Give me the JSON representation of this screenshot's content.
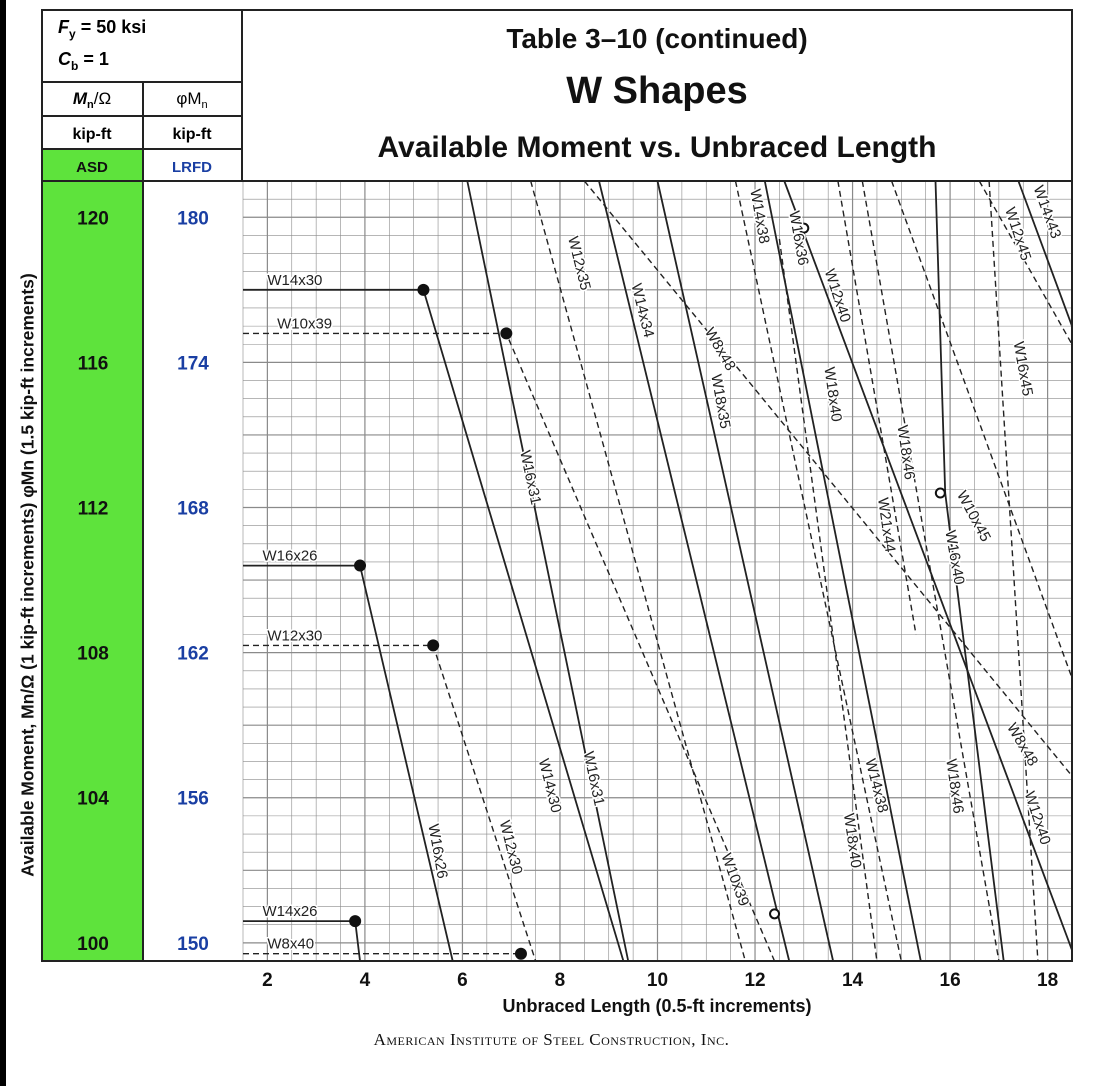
{
  "header": {
    "fy_label": "F",
    "fy_sub": "y",
    "fy_value": " = 50 ksi",
    "cb_label": "C",
    "cb_sub": "b",
    "cb_value": " = 1",
    "asd_heading": "M",
    "asd_heading_sub": "n",
    "asd_heading_rest": "/Ω",
    "lrfd_heading": "φM",
    "lrfd_heading_sub": "n",
    "asd_units": "kip-ft",
    "lrfd_units": "kip-ft",
    "asd_label": "ASD",
    "lrfd_label": "LRFD",
    "title_line1": "Table 3–10 (continued)",
    "title_line2": "W Shapes",
    "title_line3": "Available Moment vs. Unbraced Length"
  },
  "y_axis_title": "Available Moment, Mn/Ω (1 kip-ft increments) φMn (1.5 kip-ft increments)",
  "x_axis_title": "Unbraced Length (0.5-ft increments)",
  "footer": "American Institute of Steel Construction, Inc.",
  "colors": {
    "asd_green": "#5ee33c",
    "lrfd_blue": "#1a3fa3",
    "line": "#222222",
    "grid": "#8a8a8a"
  },
  "chart_data": {
    "type": "line",
    "xlabel": "Unbraced Length (0.5-ft increments)",
    "ylabel": "Available Moment, Mn/Ω (1 kip-ft increments) φMn (1.5 kip-ft increments)",
    "xlim": [
      1.5,
      18.5
    ],
    "ylim": [
      99.5,
      121
    ],
    "x_ticks": [
      2,
      4,
      6,
      8,
      10,
      12,
      14,
      16,
      18
    ],
    "y_ticks_asd": [
      100,
      104,
      108,
      112,
      116,
      120
    ],
    "y_ticks_lrfd": [
      150,
      156,
      162,
      168,
      174,
      180
    ],
    "grid": true,
    "series": [
      {
        "name": "W14x30",
        "style": "solid",
        "points": [
          [
            1.5,
            118.0
          ],
          [
            5.2,
            118.0
          ],
          [
            9.3,
            99.5
          ]
        ],
        "markers": [
          {
            "x": 5.2,
            "y": 118.0,
            "fill": "solid"
          }
        ],
        "labels": [
          {
            "text": "W14x30",
            "x": 2.0,
            "y": 118.0,
            "angle": 0,
            "pos": "above"
          },
          {
            "text": "W14x30",
            "x": 7.7,
            "y": 104.3,
            "angle": 76
          }
        ]
      },
      {
        "name": "W10x39",
        "style": "dashed",
        "points": [
          [
            1.5,
            116.8
          ],
          [
            6.9,
            116.8
          ],
          [
            12.4,
            99.5
          ]
        ],
        "markers": [
          {
            "x": 6.9,
            "y": 116.8,
            "fill": "solid"
          }
        ],
        "labels": [
          {
            "text": "W10x39",
            "x": 2.2,
            "y": 116.8,
            "angle": 0,
            "pos": "above"
          },
          {
            "text": "W10x39",
            "x": 11.5,
            "y": 101.7,
            "angle": 70
          }
        ]
      },
      {
        "name": "W16x26",
        "style": "solid",
        "points": [
          [
            1.5,
            110.4
          ],
          [
            3.9,
            110.4
          ],
          [
            5.8,
            99.5
          ]
        ],
        "markers": [
          {
            "x": 3.9,
            "y": 110.4,
            "fill": "solid"
          }
        ],
        "labels": [
          {
            "text": "W16x26",
            "x": 1.9,
            "y": 110.4,
            "angle": 0,
            "pos": "above"
          },
          {
            "text": "W16x26",
            "x": 5.4,
            "y": 102.5,
            "angle": 80
          }
        ]
      },
      {
        "name": "W12x30",
        "style": "dashed",
        "points": [
          [
            1.5,
            108.2
          ],
          [
            5.4,
            108.2
          ],
          [
            7.5,
            99.5
          ]
        ],
        "markers": [
          {
            "x": 5.4,
            "y": 108.2,
            "fill": "solid"
          }
        ],
        "labels": [
          {
            "text": "W12x30",
            "x": 2.0,
            "y": 108.2,
            "angle": 0,
            "pos": "above"
          },
          {
            "text": "W12x30",
            "x": 6.9,
            "y": 102.6,
            "angle": 76
          }
        ]
      },
      {
        "name": "W14x26",
        "style": "solid",
        "points": [
          [
            1.5,
            100.6
          ],
          [
            3.8,
            100.6
          ],
          [
            3.9,
            99.5
          ]
        ],
        "markers": [
          {
            "x": 3.8,
            "y": 100.6,
            "fill": "solid"
          }
        ],
        "labels": [
          {
            "text": "W14x26",
            "x": 1.9,
            "y": 100.6,
            "angle": 0,
            "pos": "above"
          }
        ]
      },
      {
        "name": "W8x40",
        "style": "dashed",
        "points": [
          [
            1.5,
            99.7
          ],
          [
            7.2,
            99.7
          ]
        ],
        "markers": [
          {
            "x": 7.2,
            "y": 99.7,
            "fill": "solid"
          }
        ],
        "labels": [
          {
            "text": "W8x40",
            "x": 2.0,
            "y": 99.7,
            "angle": 0,
            "pos": "above"
          }
        ]
      },
      {
        "name": "W16x31",
        "style": "solid",
        "points": [
          [
            6.1,
            121
          ],
          [
            9.4,
            99.5
          ]
        ],
        "markers": [],
        "labels": [
          {
            "text": "W16x31",
            "x": 7.3,
            "y": 112.8,
            "angle": 78
          },
          {
            "text": "W16x31",
            "x": 8.6,
            "y": 104.5,
            "angle": 78
          }
        ]
      },
      {
        "name": "W12x35",
        "style": "dashed",
        "points": [
          [
            7.4,
            121
          ],
          [
            11.8,
            99.5
          ]
        ],
        "markers": [],
        "labels": [
          {
            "text": "W12x35",
            "x": 8.3,
            "y": 118.7,
            "angle": 76
          }
        ]
      },
      {
        "name": "W14x34",
        "style": "solid",
        "points": [
          [
            8.8,
            121
          ],
          [
            12.7,
            99.5
          ]
        ],
        "markers": [],
        "labels": [
          {
            "text": "W14x34",
            "x": 9.6,
            "y": 117.4,
            "angle": 76
          }
        ]
      },
      {
        "name": "W8x48",
        "style": "dashed",
        "points": [
          [
            8.5,
            121
          ],
          [
            18.5,
            104.6
          ]
        ],
        "markers": [],
        "labels": [
          {
            "text": "W8x48",
            "x": 11.2,
            "y": 116.3,
            "angle": 60
          },
          {
            "text": "W8x48",
            "x": 17.4,
            "y": 105.4,
            "angle": 60
          }
        ]
      },
      {
        "name": "W18x35",
        "style": "solid",
        "points": [
          [
            10.0,
            121
          ],
          [
            13.6,
            99.5
          ]
        ],
        "markers": [],
        "labels": [
          {
            "text": "W18x35",
            "x": 11.2,
            "y": 114.9,
            "angle": 80
          }
        ]
      },
      {
        "name": "W14x38",
        "style": "dashed",
        "points": [
          [
            11.6,
            121
          ],
          [
            15.0,
            99.5
          ]
        ],
        "markers": [],
        "labels": [
          {
            "text": "W14x38",
            "x": 12.0,
            "y": 120.0,
            "angle": 80
          },
          {
            "text": "W14x38",
            "x": 14.4,
            "y": 104.3,
            "angle": 76
          }
        ]
      },
      {
        "name": "W16x36",
        "style": "solid",
        "points": [
          [
            12.2,
            121
          ],
          [
            15.4,
            99.5
          ]
        ],
        "markers": [],
        "labels": [
          {
            "text": "W16x36",
            "x": 12.8,
            "y": 119.4,
            "angle": 80
          }
        ]
      },
      {
        "name": "W12x40",
        "style": "solid",
        "points": [
          [
            12.6,
            121
          ],
          [
            18.5,
            99.8
          ]
        ],
        "markers": [
          {
            "x": 13.0,
            "y": 119.7,
            "fill": "hollow"
          }
        ],
        "labels": [
          {
            "text": "W12x40",
            "x": 13.6,
            "y": 117.8,
            "angle": 72
          },
          {
            "text": "W12x40",
            "x": 17.7,
            "y": 103.4,
            "angle": 72
          }
        ]
      },
      {
        "name": "W18x40",
        "style": "dashed",
        "points": [
          [
            12.5,
            119.4
          ],
          [
            14.5,
            99.5
          ]
        ],
        "markers": [
          {
            "x": 12.4,
            "y": 100.8,
            "fill": "hollow"
          }
        ],
        "labels": [
          {
            "text": "W18x40",
            "x": 13.5,
            "y": 115.1,
            "angle": 82
          },
          {
            "text": "W18x40",
            "x": 13.9,
            "y": 102.8,
            "angle": 82
          }
        ]
      },
      {
        "name": "W18x46",
        "style": "dashed",
        "points": [
          [
            14.2,
            121
          ],
          [
            17.0,
            99.5
          ]
        ],
        "markers": [],
        "labels": [
          {
            "text": "W18x46",
            "x": 15.0,
            "y": 113.5,
            "angle": 82
          },
          {
            "text": "W18x46",
            "x": 16.0,
            "y": 104.3,
            "angle": 82
          }
        ]
      },
      {
        "name": "W21x44",
        "style": "dashed",
        "points": [
          [
            13.7,
            121
          ],
          [
            15.3,
            108.5
          ]
        ],
        "markers": [],
        "labels": [
          {
            "text": "W21x44",
            "x": 14.6,
            "y": 111.5,
            "angle": 82
          }
        ]
      },
      {
        "name": "W16x40",
        "style": "solid",
        "points": [
          [
            15.7,
            121
          ],
          [
            15.9,
            112.4
          ],
          [
            17.1,
            99.5
          ]
        ],
        "markers": [
          {
            "x": 15.8,
            "y": 112.4,
            "fill": "hollow"
          }
        ],
        "labels": [
          {
            "text": "W16x40",
            "x": 16.0,
            "y": 110.6,
            "angle": 80
          }
        ]
      },
      {
        "name": "W10x45",
        "style": "dashed",
        "points": [
          [
            14.8,
            121
          ],
          [
            18.5,
            107.3
          ]
        ],
        "markers": [],
        "labels": [
          {
            "text": "W10x45",
            "x": 16.4,
            "y": 111.7,
            "angle": 62
          }
        ]
      },
      {
        "name": "W12x45",
        "style": "dashed",
        "points": [
          [
            16.6,
            121
          ],
          [
            18.5,
            116.5
          ]
        ],
        "markers": [],
        "labels": [
          {
            "text": "W12x45",
            "x": 17.3,
            "y": 119.5,
            "angle": 72
          }
        ]
      },
      {
        "name": "W16x45",
        "style": "dashed",
        "points": [
          [
            16.8,
            121
          ],
          [
            17.8,
            99.5
          ]
        ],
        "markers": [],
        "labels": [
          {
            "text": "W16x45",
            "x": 17.4,
            "y": 115.8,
            "angle": 80
          }
        ]
      },
      {
        "name": "W14x43",
        "style": "solid",
        "points": [
          [
            17.4,
            121
          ],
          [
            18.5,
            117.0
          ]
        ],
        "markers": [],
        "labels": [
          {
            "text": "W14x43",
            "x": 17.9,
            "y": 120.1,
            "angle": 70
          }
        ]
      }
    ]
  }
}
